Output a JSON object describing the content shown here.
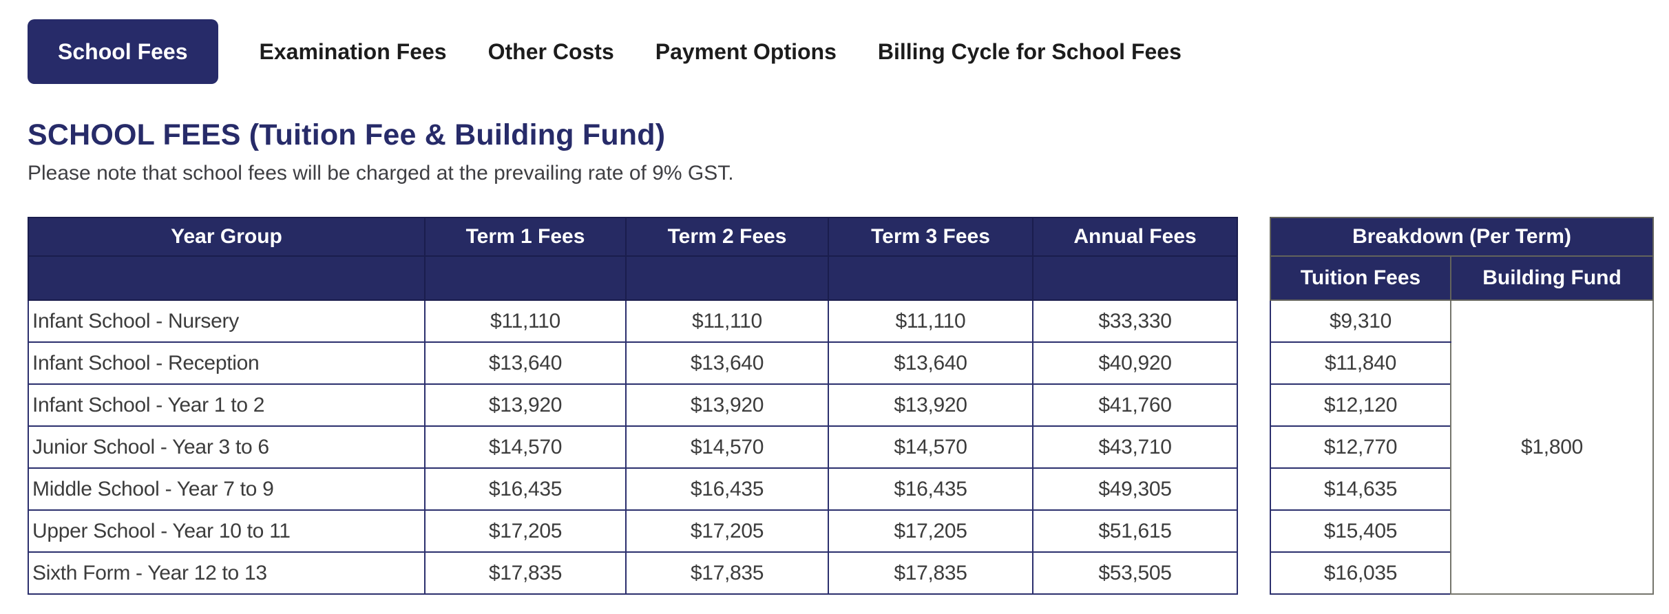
{
  "tabs": [
    {
      "label": "School Fees",
      "active": true
    },
    {
      "label": "Examination Fees",
      "active": false
    },
    {
      "label": "Other Costs",
      "active": false
    },
    {
      "label": "Payment Options",
      "active": false
    },
    {
      "label": "Billing Cycle for School Fees",
      "active": false
    }
  ],
  "heading": "SCHOOL FEES (Tuition Fee & Building Fund)",
  "note": "Please note that school fees will be charged at the prevailing rate of 9% GST.",
  "fees_table": {
    "headers": [
      "Year Group",
      "Term 1 Fees",
      "Term 2 Fees",
      "Term 3 Fees",
      "Annual Fees"
    ],
    "rows": [
      [
        "Infant School - Nursery",
        "$11,110",
        "$11,110",
        "$11,110",
        "$33,330"
      ],
      [
        "Infant School - Reception",
        "$13,640",
        "$13,640",
        "$13,640",
        "$40,920"
      ],
      [
        "Infant School - Year 1 to 2",
        "$13,920",
        "$13,920",
        "$13,920",
        "$41,760"
      ],
      [
        "Junior School - Year 3 to 6",
        "$14,570",
        "$14,570",
        "$14,570",
        "$43,710"
      ],
      [
        "Middle School - Year 7 to 9",
        "$16,435",
        "$16,435",
        "$16,435",
        "$49,305"
      ],
      [
        "Upper School - Year 10 to 11",
        "$17,205",
        "$17,205",
        "$17,205",
        "$51,615"
      ],
      [
        "Sixth Form - Year 12 to 13",
        "$17,835",
        "$17,835",
        "$17,835",
        "$53,505"
      ]
    ]
  },
  "breakdown_table": {
    "title": "Breakdown (Per Term)",
    "headers": [
      "Tuition Fees",
      "Building Fund"
    ],
    "tuition_fees": [
      "$9,310",
      "$11,840",
      "$12,120",
      "$12,770",
      "$14,635",
      "$15,405",
      "$16,035"
    ],
    "building_fund": "$1,800"
  },
  "colors": {
    "navy": "#262a63",
    "active_tab_navy": "#272b69",
    "table_border_navy": "#2b2f6d",
    "breakdown_border_gray": "#75756c",
    "body_text": "#3c3c3c"
  }
}
